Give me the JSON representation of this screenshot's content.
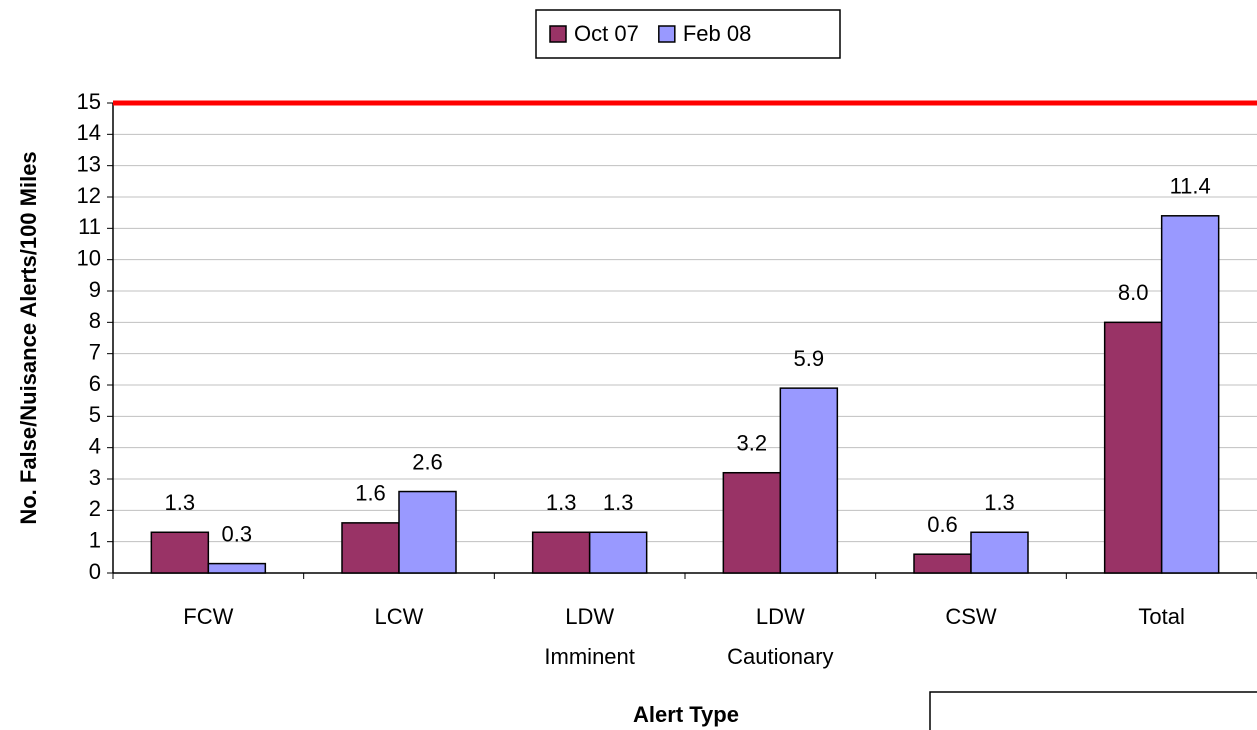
{
  "chart_data": {
    "type": "bar",
    "categories": [
      "FCW",
      "LCW",
      "LDW Imminent",
      "LDW Cautionary",
      "CSW",
      "Total"
    ],
    "series": [
      {
        "name": "Oct 07",
        "color": "#993366",
        "values": [
          1.3,
          1.6,
          1.3,
          3.2,
          0.6,
          8
        ],
        "value_labels": [
          "1.3",
          "1.6",
          "1.3",
          "3.2",
          "0.6",
          "8.0"
        ]
      },
      {
        "name": "Feb 08",
        "color": "#9999ff",
        "values": [
          0.3,
          2.6,
          1.3,
          5.9,
          1.3,
          11.4
        ],
        "value_labels": [
          "0.3",
          "2.6",
          "1.3",
          "5.9",
          "1.3",
          "11.4"
        ]
      }
    ],
    "x_label": "Alert Type",
    "y_label": "No. False/Nuisance Alerts/100 Miles",
    "ylim": [
      0,
      15
    ],
    "yticks": [
      0,
      1,
      2,
      3,
      4,
      5,
      6,
      7,
      8,
      9,
      10,
      11,
      12,
      13,
      14,
      15
    ],
    "grid": true,
    "legend": "top",
    "reference_line": {
      "value": 15,
      "color": "#ff0000"
    }
  }
}
